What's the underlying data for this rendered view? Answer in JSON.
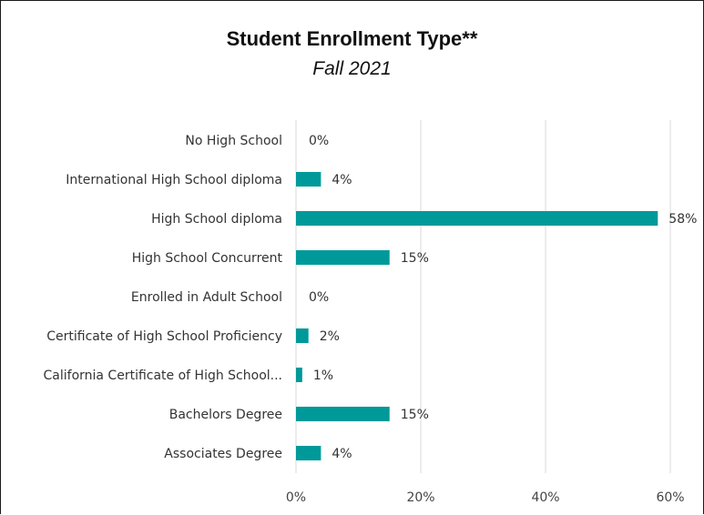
{
  "chart_data": {
    "type": "bar",
    "orientation": "horizontal",
    "title": "Student Enrollment Type**",
    "subtitle": "Fall 2021",
    "categories": [
      "No High School",
      "International High School diploma",
      "High School diploma",
      "High School Concurrent",
      "Enrolled in Adult School",
      "Certificate of High School Proficiency",
      "California Certificate of High School...",
      "Bachelors Degree",
      "Associates Degree"
    ],
    "values": [
      0,
      4,
      58,
      15,
      0,
      2,
      1,
      15,
      4
    ],
    "data_labels": [
      "0%",
      "4%",
      "58%",
      "15%",
      "0%",
      "2%",
      "1%",
      "15%",
      "4%"
    ],
    "x_ticks": [
      "0%",
      "20%",
      "40%",
      "60%"
    ],
    "xlim": [
      0,
      60
    ],
    "grid": true,
    "bar_color": "#009999",
    "xlabel": "",
    "ylabel": ""
  }
}
